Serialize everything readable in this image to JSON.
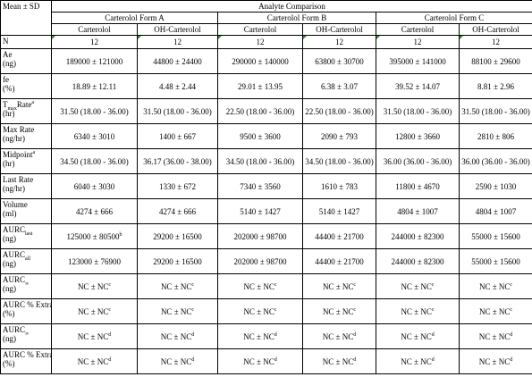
{
  "header": {
    "corner": "Mean ± SD",
    "title": "Analyte Comparison",
    "groups": [
      "Carterolol Form A",
      "Carterolol Form B",
      "Carterolol Form C"
    ],
    "subcolumns": [
      "Carterolol",
      "OH-Carterolol",
      "Carterolol",
      "OH-Carterolol",
      "Carterolol",
      "OH-Carterolol"
    ]
  },
  "rows": [
    {
      "label": [
        "N"
      ],
      "values": [
        "12",
        "12",
        "12",
        "12",
        "12",
        "12"
      ]
    },
    {
      "label": [
        "Ae",
        "(ng)"
      ],
      "values": [
        "189000 ± 121000",
        "44800 ± 24400",
        "290000 ± 140000",
        "63800 ± 30700",
        "395000 ± 141000",
        "88100 ± 29600"
      ]
    },
    {
      "label": [
        "fe",
        "(%)"
      ],
      "values": [
        "18.89 ± 12.11",
        "4.48 ± 2.44",
        "29.01 ± 13.95",
        "6.38 ± 3.07",
        "39.52 ± 14.07",
        "8.81 ± 2.96"
      ]
    },
    {
      "label": [
        [
          "T",
          {
            "sub": "max"
          },
          "Rate",
          {
            "sup": "a"
          }
        ],
        "(hr)"
      ],
      "values": [
        "31.50 (18.00 - 36.00)",
        "31.50 (18.00 - 36.00)",
        "22.50 (18.00 - 36.00)",
        "22.50 (18.00 - 36.00)",
        "31.50 (18.00 - 36.00)",
        "31.50 (18.00 - 36.00)"
      ]
    },
    {
      "label": [
        "Max Rate",
        "(ng/hr)"
      ],
      "values": [
        "6340 ± 3010",
        "1400 ± 667",
        "9500 ± 3600",
        "2090 ± 793",
        "12800 ± 3660",
        "2810 ± 806"
      ]
    },
    {
      "label": [
        [
          "Midpoint",
          {
            "sup": "a"
          }
        ],
        "(hr)"
      ],
      "values": [
        "34.50 (18.00 - 36.00)",
        "36.17 (36.00 - 38.00)",
        "34.50 (18.00 - 36.00)",
        "34.50 (18.00 - 36.00)",
        "36.00 (36.00 - 36.00)",
        "36.00 (36.00 - 36.00)"
      ]
    },
    {
      "label": [
        "Last Rate",
        "(ng/hr)"
      ],
      "values": [
        "6040 ± 3030",
        "1330 ± 672",
        "7340 ± 3560",
        "1610 ± 783",
        "11800 ± 4670",
        "2590 ± 1030"
      ]
    },
    {
      "label": [
        "Volume",
        "(ml)"
      ],
      "values": [
        "4274 ± 666",
        "4274 ± 666",
        "5140 ± 1427",
        "5140 ± 1427",
        "4804 ± 1007",
        "4804 ± 1007"
      ]
    },
    {
      "label": [
        [
          "AURC",
          {
            "sub": "last"
          }
        ],
        "(ng)"
      ],
      "values": [
        [
          "125000 ± 80500",
          {
            "sup": "b"
          }
        ],
        "29200 ± 16500",
        "202000 ± 98700",
        "44400 ± 21700",
        "244000 ± 82300",
        "55000 ± 15600"
      ]
    },
    {
      "label": [
        [
          "AURC",
          {
            "sub": "all"
          }
        ],
        "(ng)"
      ],
      "values": [
        "123000 ± 76900",
        "29200 ± 16500",
        "202000 ± 98700",
        "44400 ± 21700",
        "244000 ± 82300",
        "55000 ± 15600"
      ]
    },
    {
      "label": [
        [
          "AURC",
          {
            "sub": "∞"
          }
        ],
        "(ng)"
      ],
      "values": [
        [
          "NC ± NC",
          {
            "sup": "c"
          }
        ],
        [
          "NC ± NC",
          {
            "sup": "c"
          }
        ],
        [
          "NC ± NC",
          {
            "sup": "c"
          }
        ],
        [
          "NC ± NC",
          {
            "sup": "c"
          }
        ],
        [
          "NC ± NC",
          {
            "sup": "c"
          }
        ],
        [
          "NC ± NC",
          {
            "sup": "c"
          }
        ]
      ]
    },
    {
      "label": [
        "AURC % Extra",
        "(%)"
      ],
      "values": [
        [
          "NC ± NC",
          {
            "sup": "c"
          }
        ],
        [
          "NC ± NC",
          {
            "sup": "c"
          }
        ],
        [
          "NC ± NC",
          {
            "sup": "c"
          }
        ],
        [
          "NC ± NC",
          {
            "sup": "c"
          }
        ],
        [
          "NC ± NC",
          {
            "sup": "c"
          }
        ],
        [
          "NC ± NC",
          {
            "sup": "c"
          }
        ]
      ]
    },
    {
      "label": [
        [
          "AURC",
          {
            "sub": "∞"
          }
        ],
        "(ng)"
      ],
      "values": [
        [
          "NC ± NC",
          {
            "sup": "d"
          }
        ],
        [
          "NC ± NC",
          {
            "sup": "d"
          }
        ],
        [
          "NC ± NC",
          {
            "sup": "d"
          }
        ],
        [
          "NC ± NC",
          {
            "sup": "d"
          }
        ],
        [
          "NC ± NC",
          {
            "sup": "d"
          }
        ],
        [
          "NC ± NC",
          {
            "sup": "d"
          }
        ]
      ]
    },
    {
      "label": [
        "AURC % Extra",
        "(%)"
      ],
      "values": [
        [
          "NC ± NC",
          {
            "sup": "d"
          }
        ],
        [
          "NC ± NC",
          {
            "sup": "d"
          }
        ],
        [
          "NC ± NC",
          {
            "sup": "d"
          }
        ],
        [
          "NC ± NC",
          {
            "sup": "d"
          }
        ],
        [
          "NC ± NC",
          {
            "sup": "d"
          }
        ],
        [
          "NC ± NC",
          {
            "sup": "d"
          }
        ]
      ]
    }
  ]
}
